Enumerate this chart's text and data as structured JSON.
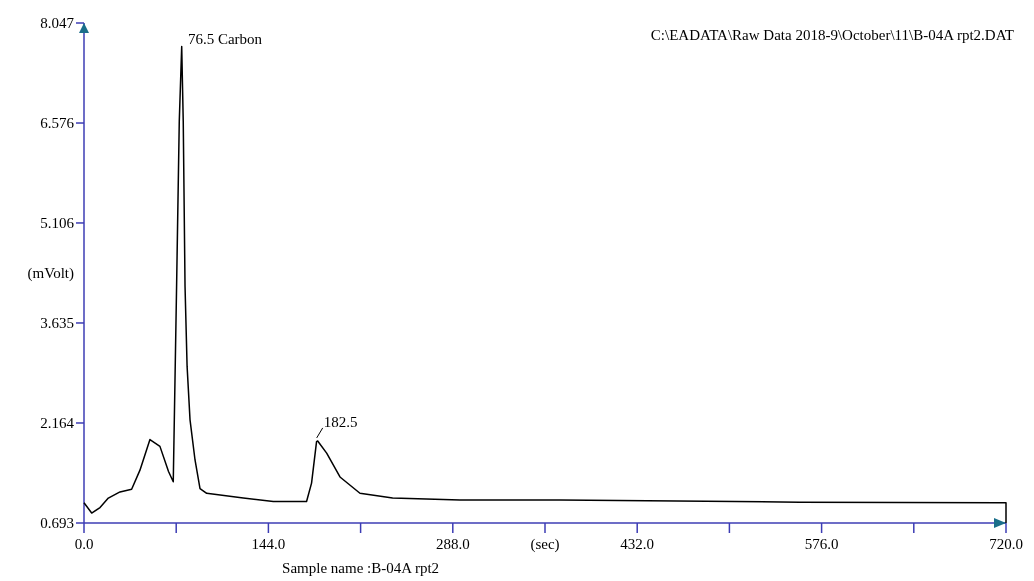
{
  "chart_data": {
    "type": "line",
    "xlabel": "(sec)",
    "ylabel": "(mVolt)",
    "x": [
      0,
      6.0,
      12.5,
      19,
      28.1,
      37.2,
      43.7,
      51.5,
      59.3,
      66,
      69.7,
      72.3,
      74.4,
      76.3,
      77.5,
      78.9,
      80.5,
      82.8,
      86.7,
      90.6,
      95.8,
      124.4,
      147.8,
      173.8,
      177.7,
      181.6,
      182.5,
      189.5,
      199.9,
      215.5,
      241,
      293.6,
      371.7,
      559,
      715,
      720,
      720
    ],
    "series": [
      {
        "color": "#000000",
        "values": [
          0.99,
          0.84,
          0.92,
          1.06,
          1.15,
          1.19,
          1.47,
          1.92,
          1.82,
          1.45,
          1.3,
          4.17,
          6.6,
          7.7,
          6.6,
          4.17,
          3.0,
          2.21,
          1.62,
          1.2,
          1.13,
          1.06,
          1.01,
          1.01,
          1.28,
          1.89,
          1.9,
          1.72,
          1.37,
          1.13,
          1.06,
          1.03,
          1.03,
          1.0,
          0.99,
          0.99,
          0.693
        ]
      }
    ],
    "xlim": [
      0,
      720
    ],
    "ylim": [
      0.693,
      8.047
    ],
    "xticks": [
      {
        "value": 0,
        "label": "0.0"
      },
      {
        "value": 72,
        "label": null
      },
      {
        "value": 144,
        "label": "144.0"
      },
      {
        "value": 216,
        "label": null
      },
      {
        "value": 288,
        "label": "288.0"
      },
      {
        "value": 360,
        "label": null
      },
      {
        "value": 432,
        "label": "432.0"
      },
      {
        "value": 504,
        "label": null
      },
      {
        "value": 576,
        "label": "576.0"
      },
      {
        "value": 648,
        "label": null
      },
      {
        "value": 720,
        "label": "720.0"
      }
    ],
    "yticks": [
      0.693,
      2.164,
      3.635,
      5.106,
      6.576,
      8.047
    ],
    "grid": false,
    "marker": "none",
    "line_style": "solid",
    "annotations": [
      {
        "text": "76.5  Carbon",
        "x": 76.5,
        "y": 7.7
      },
      {
        "text": "182.5",
        "x": 182.5,
        "y": 1.9
      },
      "C:\\EADATA\\Raw Data 2018-9\\October\\11\\B-04A rpt2.DAT",
      "Sample name :B-04A rpt2"
    ]
  }
}
